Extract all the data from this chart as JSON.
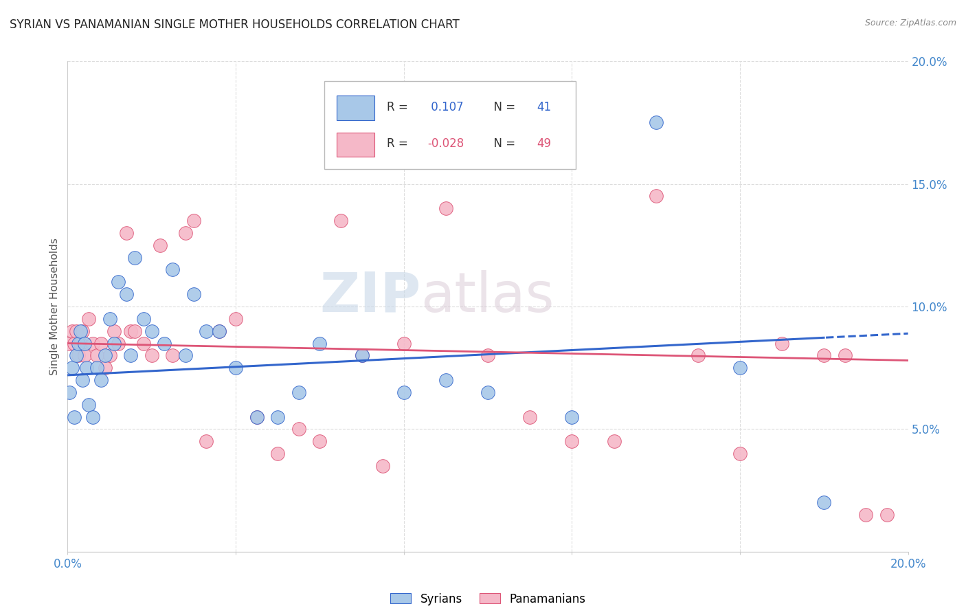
{
  "title": "SYRIAN VS PANAMANIAN SINGLE MOTHER HOUSEHOLDS CORRELATION CHART",
  "source": "Source: ZipAtlas.com",
  "ylabel": "Single Mother Households",
  "right_yticks": [
    "5.0%",
    "10.0%",
    "15.0%",
    "20.0%"
  ],
  "right_ytick_vals": [
    5.0,
    10.0,
    15.0,
    20.0
  ],
  "R_syrian": 0.107,
  "N_syrian": 41,
  "R_panamanian": -0.028,
  "N_panamanian": 49,
  "xlim": [
    0.0,
    20.0
  ],
  "ylim": [
    0.0,
    20.0
  ],
  "color_syrian": "#a8c8e8",
  "color_panamanian": "#f5b8c8",
  "color_syrian_line": "#3366cc",
  "color_panamanian_line": "#dd5577",
  "watermark_zip": "ZIP",
  "watermark_atlas": "atlas",
  "syrian_x": [
    0.05,
    0.1,
    0.15,
    0.2,
    0.25,
    0.3,
    0.35,
    0.4,
    0.45,
    0.5,
    0.6,
    0.7,
    0.8,
    0.9,
    1.0,
    1.1,
    1.2,
    1.4,
    1.5,
    1.6,
    1.8,
    2.0,
    2.3,
    2.5,
    2.8,
    3.0,
    3.3,
    3.6,
    4.0,
    4.5,
    5.0,
    5.5,
    6.0,
    7.0,
    8.0,
    9.0,
    10.0,
    12.0,
    14.0,
    16.0,
    18.0
  ],
  "syrian_y": [
    6.5,
    7.5,
    5.5,
    8.0,
    8.5,
    9.0,
    7.0,
    8.5,
    7.5,
    6.0,
    5.5,
    7.5,
    7.0,
    8.0,
    9.5,
    8.5,
    11.0,
    10.5,
    8.0,
    12.0,
    9.5,
    9.0,
    8.5,
    11.5,
    8.0,
    10.5,
    9.0,
    9.0,
    7.5,
    5.5,
    5.5,
    6.5,
    8.5,
    8.0,
    6.5,
    7.0,
    6.5,
    5.5,
    17.5,
    7.5,
    2.0
  ],
  "panamanian_x": [
    0.05,
    0.1,
    0.15,
    0.2,
    0.25,
    0.3,
    0.35,
    0.4,
    0.5,
    0.6,
    0.7,
    0.8,
    0.9,
    1.0,
    1.1,
    1.2,
    1.4,
    1.5,
    1.6,
    1.8,
    2.0,
    2.2,
    2.5,
    2.8,
    3.0,
    3.3,
    3.6,
    4.0,
    4.5,
    5.0,
    5.5,
    6.0,
    6.5,
    7.0,
    7.5,
    8.0,
    9.0,
    10.0,
    11.0,
    12.0,
    13.0,
    14.0,
    15.0,
    16.0,
    17.0,
    18.0,
    18.5,
    19.0,
    19.5
  ],
  "panamanian_y": [
    8.5,
    9.0,
    8.5,
    9.0,
    8.0,
    8.5,
    9.0,
    8.0,
    9.5,
    8.5,
    8.0,
    8.5,
    7.5,
    8.0,
    9.0,
    8.5,
    13.0,
    9.0,
    9.0,
    8.5,
    8.0,
    12.5,
    8.0,
    13.0,
    13.5,
    4.5,
    9.0,
    9.5,
    5.5,
    4.0,
    5.0,
    4.5,
    13.5,
    8.0,
    3.5,
    8.5,
    14.0,
    8.0,
    5.5,
    4.5,
    4.5,
    14.5,
    8.0,
    4.0,
    8.5,
    8.0,
    8.0,
    1.5,
    1.5
  ],
  "title_color": "#222222",
  "axis_color": "#555555",
  "grid_color": "#dddddd",
  "background_color": "#ffffff",
  "sy_intercept": 7.2,
  "sy_slope": 0.085,
  "pa_intercept": 8.5,
  "pa_slope": -0.035,
  "sy_solid_end": 18.0
}
